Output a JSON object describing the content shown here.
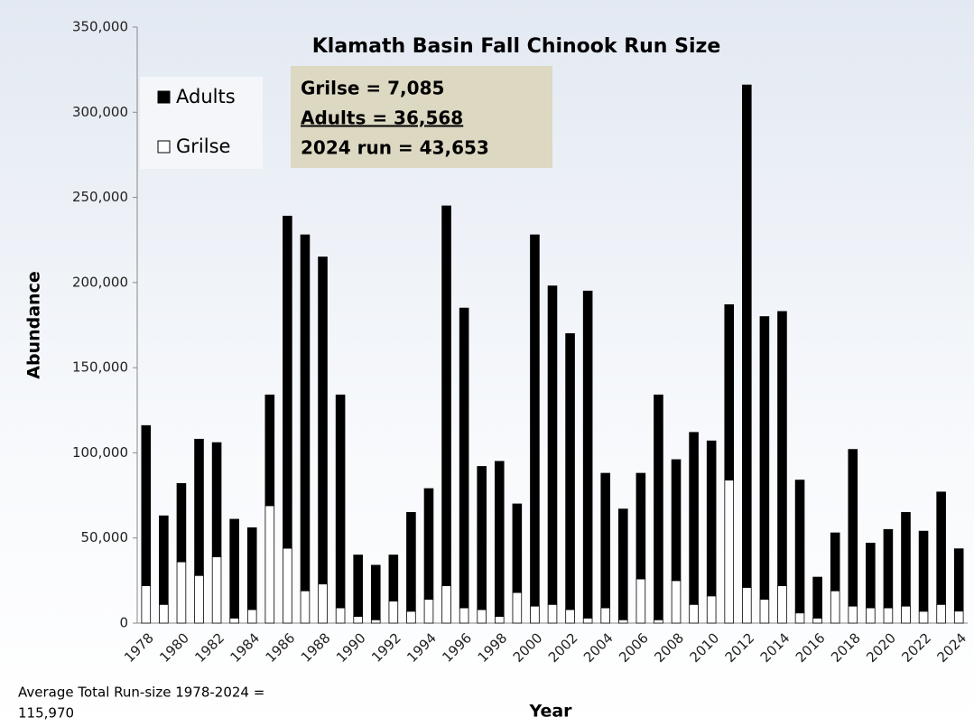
{
  "chart_data": {
    "type": "stacked_bar",
    "title": "Klamath Basin Fall Chinook Run Size",
    "x_label": "Year",
    "y_label": "Abundance",
    "categories": [
      "1978",
      null,
      "1980",
      null,
      "1982",
      null,
      "1984",
      null,
      "1986",
      null,
      "1988",
      null,
      "1990",
      null,
      "1992",
      null,
      "1994",
      null,
      "1996",
      null,
      "1998",
      null,
      "2000",
      null,
      "2002",
      null,
      "2004",
      null,
      "2006",
      null,
      "2008",
      null,
      "2010",
      null,
      "2012",
      null,
      "2014",
      null,
      "2016",
      null,
      "2018",
      null,
      "2020",
      null,
      "2022",
      null,
      "2024"
    ],
    "series": [
      {
        "name": "Grilse",
        "color": "#ffffff",
        "values": [
          22000,
          11000,
          36000,
          28000,
          39000,
          3000,
          8000,
          69000,
          44000,
          19000,
          23000,
          9000,
          4000,
          2000,
          13000,
          7000,
          14000,
          22000,
          9000,
          8000,
          4000,
          18000,
          10000,
          11000,
          8000,
          3000,
          9000,
          2000,
          26000,
          2000,
          25000,
          11000,
          16000,
          84000,
          21000,
          14000,
          22000,
          6000,
          3000,
          19000,
          10000,
          9000,
          9000,
          10000,
          7000,
          11000,
          7085
        ]
      },
      {
        "name": "Adults",
        "color": "#000000",
        "values": [
          94000,
          52000,
          46000,
          80000,
          67000,
          58000,
          48000,
          65000,
          195000,
          209000,
          192000,
          125000,
          36000,
          32000,
          27000,
          58000,
          65000,
          223000,
          176000,
          84000,
          91000,
          52000,
          218000,
          187000,
          162000,
          192000,
          79000,
          65000,
          62000,
          132000,
          71000,
          101000,
          91000,
          103000,
          295000,
          166000,
          161000,
          78000,
          24000,
          34000,
          92000,
          38000,
          46000,
          55000,
          47000,
          66000,
          36568
        ]
      }
    ],
    "legend_order": [
      "Adults",
      "Grilse"
    ],
    "legend_position": "upper left",
    "annotation_box": [
      "Grilse = 7,085",
      "Adults = 36,568",
      "2024 run = 43,653"
    ],
    "footnote": [
      "Average Total Run-size 1978-2024 =",
      "115,970"
    ],
    "ylim": [
      0,
      350000
    ],
    "yticks": [
      0,
      {
        "value": 50000,
        "label": "50,000"
      },
      {
        "value": 100000,
        "label": "100,000"
      },
      {
        "value": 150000,
        "label": "150,000"
      },
      {
        "value": 200000,
        "label": "200,000"
      },
      {
        "value": 250000,
        "label": "250,000"
      },
      {
        "value": 300000,
        "label": "300,000"
      },
      {
        "value": 350000,
        "label": "350,000"
      }
    ],
    "grid": false
  }
}
